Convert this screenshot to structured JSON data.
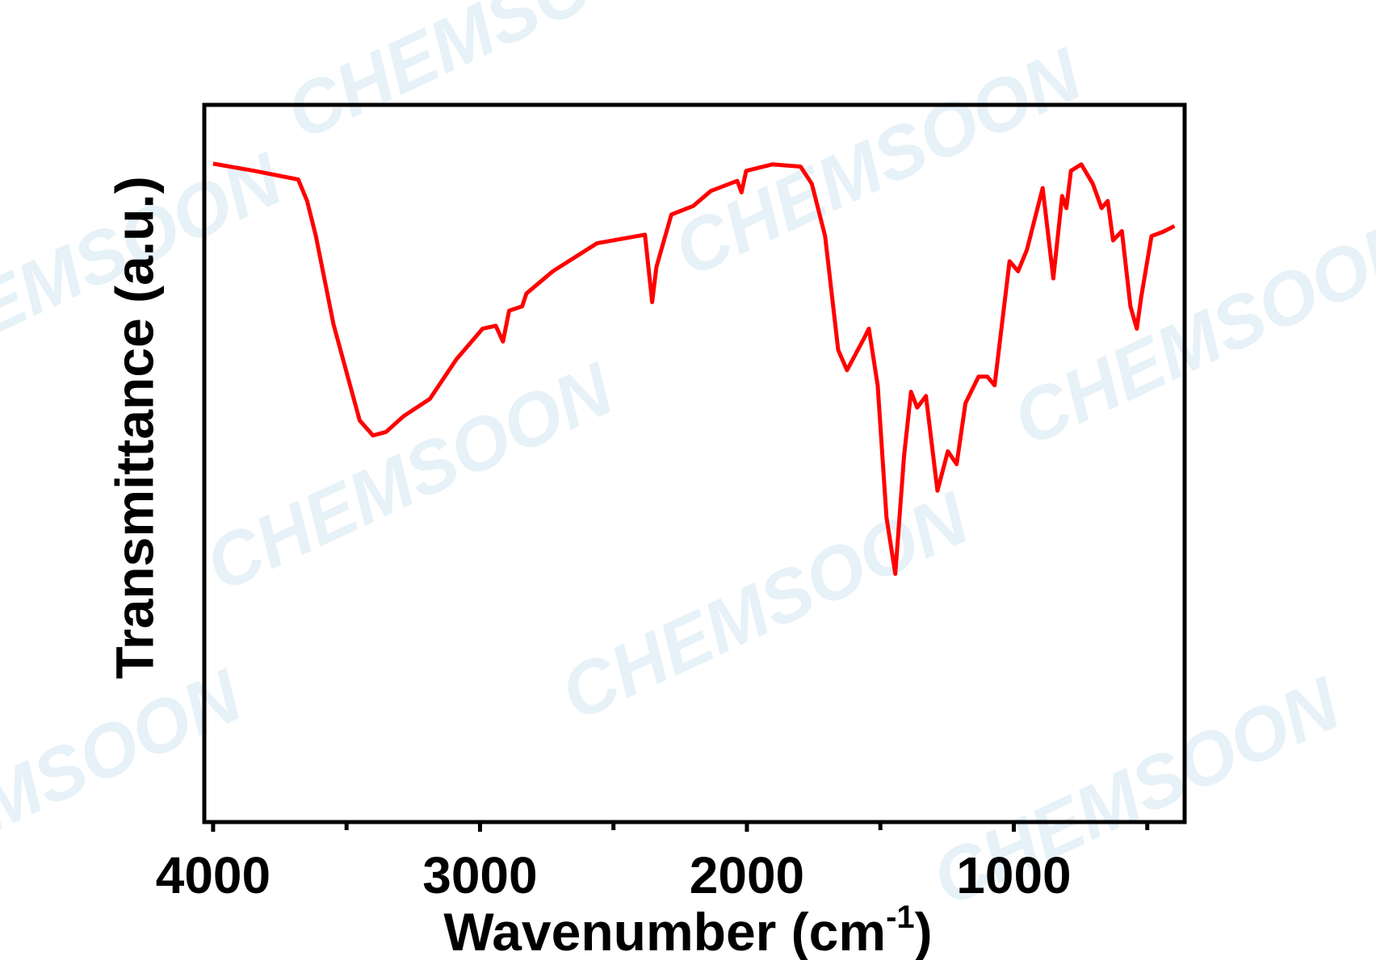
{
  "chart_data": {
    "type": "line",
    "y_label": "Transmittance (a.u.)",
    "x_label": {
      "text": "Wavenumber (cm",
      "superscript": "-1",
      "suffix": ")"
    },
    "watermark": "CHEMSOON",
    "xlim": [
      4033,
      360
    ],
    "ylim": [
      0,
      100
    ],
    "xticks": [
      4000,
      3000,
      2000,
      1000
    ],
    "xminorticks": [
      3500,
      2500,
      1500,
      500
    ],
    "series": [
      {
        "color": "#ff0000",
        "x": [
          4000,
          3845,
          3681,
          3648,
          3615,
          3549,
          3451,
          3401,
          3352,
          3286,
          3188,
          3089,
          2990,
          2941,
          2914,
          2891,
          2842,
          2826,
          2727,
          2562,
          2382,
          2355,
          2339,
          2283,
          2201,
          2135,
          2036,
          2020,
          2003,
          1905,
          1799,
          1757,
          1707,
          1658,
          1625,
          1559,
          1543,
          1510,
          1477,
          1444,
          1411,
          1385,
          1362,
          1329,
          1286,
          1247,
          1214,
          1181,
          1132,
          1099,
          1072,
          1016,
          984,
          951,
          892,
          852,
          819,
          803,
          786,
          747,
          704,
          671,
          648,
          628,
          595,
          563,
          539,
          523,
          484,
          441,
          398
        ],
        "values": [
          91.8,
          90.8,
          89.6,
          86.6,
          81.7,
          69.4,
          56.0,
          53.9,
          54.4,
          56.6,
          59.0,
          64.5,
          68.8,
          69.2,
          67.0,
          71.3,
          71.9,
          73.7,
          76.8,
          80.7,
          81.9,
          72.5,
          77.4,
          84.7,
          85.9,
          88.0,
          89.4,
          87.8,
          90.8,
          91.7,
          91.4,
          89.0,
          81.7,
          65.8,
          63.0,
          67.6,
          68.8,
          60.9,
          42.5,
          34.6,
          51.1,
          60.0,
          57.8,
          59.4,
          46.2,
          51.7,
          49.9,
          58.4,
          62.1,
          62.1,
          60.9,
          78.2,
          76.8,
          79.8,
          88.4,
          75.8,
          87.3,
          85.6,
          90.8,
          91.7,
          89.0,
          85.6,
          86.6,
          81.1,
          82.4,
          71.9,
          68.8,
          73.1,
          81.7,
          82.3,
          83.1
        ]
      }
    ]
  }
}
